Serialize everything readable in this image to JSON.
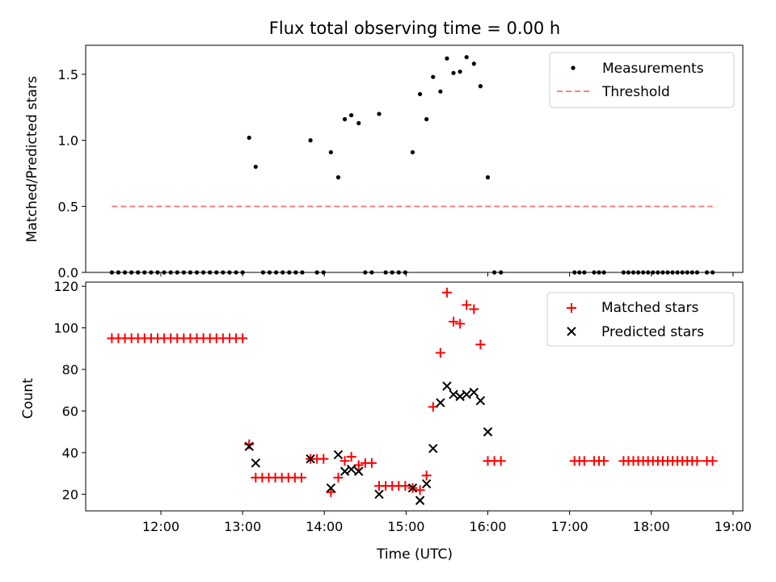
{
  "title": "Flux total observing time = 0.00 h",
  "colors": {
    "threshold": "#ff7f7f",
    "matched": "#ff0000",
    "predicted": "#000000",
    "measure": "#000000"
  },
  "chart_data": [
    {
      "type": "scatter",
      "ylabel": "Matched/Predicted stars",
      "xlim": [
        11.08,
        19.12
      ],
      "ylim": [
        0,
        1.72
      ],
      "yticks": [
        0.0,
        0.5,
        1.0,
        1.5
      ],
      "ytick_labels": [
        "0.0",
        "0.5",
        "1.0",
        "1.5"
      ],
      "legend": {
        "position": "top-right",
        "entries": [
          "Measurements",
          "Threshold"
        ]
      },
      "threshold": {
        "name": "Threshold",
        "x": [
          11.4,
          18.75
        ],
        "y": 0.5
      },
      "series": [
        {
          "name": "Measurements",
          "points": [
            [
              11.4,
              0
            ],
            [
              11.48,
              0
            ],
            [
              11.56,
              0
            ],
            [
              11.64,
              0
            ],
            [
              11.72,
              0
            ],
            [
              11.8,
              0
            ],
            [
              11.88,
              0
            ],
            [
              11.96,
              0
            ],
            [
              12.04,
              0
            ],
            [
              12.12,
              0
            ],
            [
              12.2,
              0
            ],
            [
              12.28,
              0
            ],
            [
              12.36,
              0
            ],
            [
              12.44,
              0
            ],
            [
              12.52,
              0
            ],
            [
              12.6,
              0
            ],
            [
              12.68,
              0
            ],
            [
              12.76,
              0
            ],
            [
              12.84,
              0
            ],
            [
              12.92,
              0
            ],
            [
              13.0,
              0
            ],
            [
              13.08,
              1.02
            ],
            [
              13.16,
              0.8
            ],
            [
              13.25,
              0
            ],
            [
              13.33,
              0
            ],
            [
              13.41,
              0
            ],
            [
              13.49,
              0
            ],
            [
              13.57,
              0
            ],
            [
              13.65,
              0
            ],
            [
              13.73,
              0
            ],
            [
              13.83,
              1.0
            ],
            [
              13.91,
              0
            ],
            [
              13.99,
              0
            ],
            [
              14.08,
              0.91
            ],
            [
              14.17,
              0.72
            ],
            [
              14.25,
              1.16
            ],
            [
              14.33,
              1.19
            ],
            [
              14.42,
              1.13
            ],
            [
              14.5,
              0
            ],
            [
              14.58,
              0
            ],
            [
              14.67,
              1.2
            ],
            [
              14.75,
              0
            ],
            [
              14.83,
              0
            ],
            [
              14.91,
              0
            ],
            [
              14.99,
              0
            ],
            [
              15.08,
              0.91
            ],
            [
              15.17,
              1.35
            ],
            [
              15.25,
              1.16
            ],
            [
              15.33,
              1.48
            ],
            [
              15.42,
              1.37
            ],
            [
              15.5,
              1.62
            ],
            [
              15.58,
              1.51
            ],
            [
              15.66,
              1.52
            ],
            [
              15.74,
              1.63
            ],
            [
              15.83,
              1.58
            ],
            [
              15.91,
              1.41
            ],
            [
              16.0,
              0.72
            ],
            [
              16.08,
              0
            ],
            [
              16.16,
              0
            ],
            [
              17.06,
              0
            ],
            [
              17.12,
              0
            ],
            [
              17.18,
              0
            ],
            [
              17.3,
              0
            ],
            [
              17.36,
              0
            ],
            [
              17.42,
              0
            ],
            [
              17.66,
              0
            ],
            [
              17.72,
              0
            ],
            [
              17.78,
              0
            ],
            [
              17.84,
              0
            ],
            [
              17.9,
              0
            ],
            [
              17.96,
              0
            ],
            [
              18.02,
              0
            ],
            [
              18.08,
              0
            ],
            [
              18.14,
              0
            ],
            [
              18.2,
              0
            ],
            [
              18.26,
              0
            ],
            [
              18.32,
              0
            ],
            [
              18.38,
              0
            ],
            [
              18.44,
              0
            ],
            [
              18.5,
              0
            ],
            [
              18.56,
              0
            ],
            [
              18.68,
              0
            ],
            [
              18.75,
              0
            ]
          ]
        }
      ]
    },
    {
      "type": "scatter",
      "xlabel": "Time (UTC)",
      "ylabel": "Count",
      "xlim": [
        11.08,
        19.12
      ],
      "ylim": [
        12,
        122
      ],
      "yticks": [
        20,
        40,
        60,
        80,
        100,
        120
      ],
      "ytick_labels": [
        "20",
        "40",
        "60",
        "80",
        "100",
        "120"
      ],
      "xticks": [
        12,
        13,
        14,
        15,
        16,
        17,
        18,
        19
      ],
      "xtick_labels": [
        "12:00",
        "13:00",
        "14:00",
        "15:00",
        "16:00",
        "17:00",
        "18:00",
        "19:00"
      ],
      "legend": {
        "position": "top-right",
        "entries": [
          "Matched stars",
          "Predicted stars"
        ]
      },
      "series": [
        {
          "name": "Matched stars",
          "points": [
            [
              11.4,
              95
            ],
            [
              11.48,
              95
            ],
            [
              11.56,
              95
            ],
            [
              11.64,
              95
            ],
            [
              11.72,
              95
            ],
            [
              11.8,
              95
            ],
            [
              11.88,
              95
            ],
            [
              11.96,
              95
            ],
            [
              12.04,
              95
            ],
            [
              12.12,
              95
            ],
            [
              12.2,
              95
            ],
            [
              12.28,
              95
            ],
            [
              12.36,
              95
            ],
            [
              12.44,
              95
            ],
            [
              12.52,
              95
            ],
            [
              12.6,
              95
            ],
            [
              12.68,
              95
            ],
            [
              12.76,
              95
            ],
            [
              12.84,
              95
            ],
            [
              12.92,
              95
            ],
            [
              13.0,
              95
            ],
            [
              13.08,
              44
            ],
            [
              13.16,
              28
            ],
            [
              13.24,
              28
            ],
            [
              13.32,
              28
            ],
            [
              13.4,
              28
            ],
            [
              13.48,
              28
            ],
            [
              13.56,
              28
            ],
            [
              13.64,
              28
            ],
            [
              13.72,
              28
            ],
            [
              13.83,
              37
            ],
            [
              13.91,
              37
            ],
            [
              13.99,
              37
            ],
            [
              14.08,
              21
            ],
            [
              14.17,
              28
            ],
            [
              14.25,
              36
            ],
            [
              14.33,
              38
            ],
            [
              14.42,
              34
            ],
            [
              14.5,
              35
            ],
            [
              14.58,
              35
            ],
            [
              14.67,
              24
            ],
            [
              14.75,
              24
            ],
            [
              14.83,
              24
            ],
            [
              14.91,
              24
            ],
            [
              14.99,
              24
            ],
            [
              15.08,
              23
            ],
            [
              15.17,
              22
            ],
            [
              15.25,
              29
            ],
            [
              15.33,
              62
            ],
            [
              15.42,
              88
            ],
            [
              15.5,
              117
            ],
            [
              15.58,
              103
            ],
            [
              15.66,
              102
            ],
            [
              15.74,
              111
            ],
            [
              15.83,
              109
            ],
            [
              15.91,
              92
            ],
            [
              16.0,
              36
            ],
            [
              16.08,
              36
            ],
            [
              16.16,
              36
            ],
            [
              17.06,
              36
            ],
            [
              17.12,
              36
            ],
            [
              17.18,
              36
            ],
            [
              17.3,
              36
            ],
            [
              17.36,
              36
            ],
            [
              17.42,
              36
            ],
            [
              17.66,
              36
            ],
            [
              17.72,
              36
            ],
            [
              17.78,
              36
            ],
            [
              17.84,
              36
            ],
            [
              17.9,
              36
            ],
            [
              17.96,
              36
            ],
            [
              18.02,
              36
            ],
            [
              18.08,
              36
            ],
            [
              18.14,
              36
            ],
            [
              18.2,
              36
            ],
            [
              18.26,
              36
            ],
            [
              18.32,
              36
            ],
            [
              18.38,
              36
            ],
            [
              18.44,
              36
            ],
            [
              18.5,
              36
            ],
            [
              18.56,
              36
            ],
            [
              18.68,
              36
            ],
            [
              18.75,
              36
            ]
          ]
        },
        {
          "name": "Predicted stars",
          "points": [
            [
              13.08,
              43
            ],
            [
              13.16,
              35
            ],
            [
              13.83,
              37
            ],
            [
              14.08,
              23
            ],
            [
              14.17,
              39
            ],
            [
              14.25,
              31
            ],
            [
              14.33,
              32
            ],
            [
              14.42,
              31
            ],
            [
              14.67,
              20
            ],
            [
              15.08,
              23
            ],
            [
              15.17,
              17
            ],
            [
              15.25,
              25
            ],
            [
              15.33,
              42
            ],
            [
              15.42,
              64
            ],
            [
              15.5,
              72
            ],
            [
              15.58,
              68
            ],
            [
              15.66,
              67
            ],
            [
              15.74,
              68
            ],
            [
              15.83,
              69
            ],
            [
              15.91,
              65
            ],
            [
              16.0,
              50
            ]
          ]
        }
      ]
    }
  ]
}
